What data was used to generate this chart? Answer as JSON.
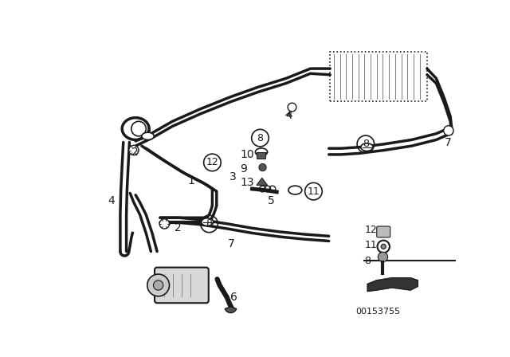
{
  "bg_color": "#ffffff",
  "line_color": "#1a1a1a",
  "image_number": "00153755",
  "pipe_lw": 2.0,
  "thin_lw": 1.0
}
